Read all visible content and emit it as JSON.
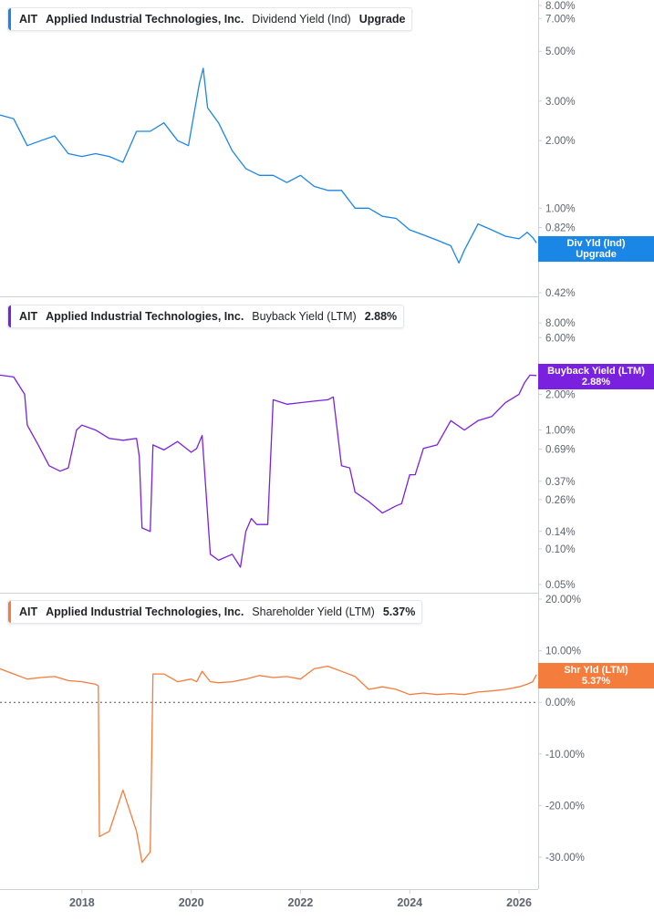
{
  "colors": {
    "div": "#1a86e6",
    "buyback": "#7a21e0",
    "shareholder": "#f47c3c",
    "axis": "#cfd3d8",
    "tick_text": "#5c6570",
    "zero_line": "#555555"
  },
  "x_axis": {
    "ticks": [
      "2018",
      "2020",
      "2022",
      "2024",
      "2026"
    ]
  },
  "chart_data": [
    {
      "type": "line",
      "scale": "log",
      "legend": {
        "ticker": "AIT",
        "company": "Applied Industrial Technologies, Inc.",
        "metric": "Dividend Yield (Ind)",
        "value": "Upgrade"
      },
      "y_ticks": [
        "8.00%",
        "7.00%",
        "5.00%",
        "3.00%",
        "2.00%",
        "1.00%",
        "0.82%",
        "0.42%"
      ],
      "y_tick_values": [
        8,
        7,
        5,
        3,
        2,
        1,
        0.82,
        0.42
      ],
      "end_label": {
        "line1": "Div Yld (Ind)",
        "line2": "Upgrade"
      },
      "series": [
        {
          "name": "Dividend Yield (Ind)",
          "x": [
            2016.5,
            2016.75,
            2017.0,
            2017.25,
            2017.5,
            2017.75,
            2018.0,
            2018.25,
            2018.5,
            2018.75,
            2019.0,
            2019.25,
            2019.5,
            2019.75,
            2019.95,
            2020.15,
            2020.22,
            2020.3,
            2020.5,
            2020.75,
            2021.0,
            2021.25,
            2021.5,
            2021.75,
            2022.0,
            2022.25,
            2022.5,
            2022.75,
            2023.0,
            2023.25,
            2023.5,
            2023.75,
            2024.0,
            2024.25,
            2024.5,
            2024.75,
            2024.9,
            2025.0,
            2025.25,
            2025.5,
            2025.75,
            2026.0,
            2026.15,
            2026.25,
            2026.32
          ],
          "y": [
            2.6,
            2.5,
            1.9,
            2.0,
            2.1,
            1.75,
            1.7,
            1.75,
            1.7,
            1.6,
            2.2,
            2.2,
            2.4,
            2.0,
            1.9,
            3.6,
            4.2,
            2.8,
            2.4,
            1.8,
            1.5,
            1.4,
            1.4,
            1.3,
            1.4,
            1.25,
            1.2,
            1.2,
            1.0,
            1.0,
            0.92,
            0.9,
            0.8,
            0.76,
            0.72,
            0.68,
            0.57,
            0.65,
            0.85,
            0.8,
            0.75,
            0.73,
            0.78,
            0.74,
            0.7
          ]
        }
      ]
    },
    {
      "type": "line",
      "scale": "log",
      "legend": {
        "ticker": "AIT",
        "company": "Applied Industrial Technologies, Inc.",
        "metric": "Buyback Yield (LTM)",
        "value": "2.88%"
      },
      "y_ticks": [
        "8.00%",
        "6.00%",
        "2.00%",
        "1.00%",
        "0.69%",
        "0.37%",
        "0.26%",
        "0.14%",
        "0.10%",
        "0.05%"
      ],
      "y_tick_values": [
        8,
        6,
        2,
        1,
        0.69,
        0.37,
        0.26,
        0.14,
        0.1,
        0.05
      ],
      "end_label": {
        "line1": "Buyback Yield (LTM)",
        "line2": "2.88%"
      },
      "series": [
        {
          "name": "Buyback Yield (LTM)",
          "x": [
            2016.5,
            2016.75,
            2016.95,
            2017.0,
            2017.2,
            2017.4,
            2017.6,
            2017.75,
            2017.9,
            2018.0,
            2018.25,
            2018.5,
            2018.75,
            2019.0,
            2019.05,
            2019.1,
            2019.25,
            2019.3,
            2019.5,
            2019.75,
            2020.0,
            2020.1,
            2020.2,
            2020.35,
            2020.5,
            2020.75,
            2020.9,
            2021.0,
            2021.1,
            2021.2,
            2021.4,
            2021.5,
            2021.75,
            2022.0,
            2022.25,
            2022.5,
            2022.6,
            2022.75,
            2022.9,
            2023.0,
            2023.25,
            2023.5,
            2023.75,
            2023.85,
            2024.0,
            2024.1,
            2024.25,
            2024.5,
            2024.75,
            2025.0,
            2025.25,
            2025.5,
            2025.75,
            2026.0,
            2026.1,
            2026.2,
            2026.32
          ],
          "y": [
            2.9,
            2.8,
            2.0,
            1.1,
            0.75,
            0.5,
            0.45,
            0.48,
            1.0,
            1.1,
            1.0,
            0.85,
            0.82,
            0.85,
            0.6,
            0.15,
            0.14,
            0.75,
            0.68,
            0.8,
            0.65,
            0.7,
            0.9,
            0.09,
            0.08,
            0.09,
            0.07,
            0.14,
            0.18,
            0.16,
            0.16,
            1.8,
            1.65,
            1.7,
            1.75,
            1.8,
            1.9,
            0.5,
            0.48,
            0.3,
            0.25,
            0.2,
            0.23,
            0.24,
            0.42,
            0.42,
            0.7,
            0.75,
            1.2,
            1.0,
            1.2,
            1.3,
            1.7,
            2.0,
            2.5,
            2.9,
            2.88
          ]
        }
      ]
    },
    {
      "type": "line",
      "scale": "linear",
      "legend": {
        "ticker": "AIT",
        "company": "Applied Industrial Technologies, Inc.",
        "metric": "Shareholder Yield (LTM)",
        "value": "5.37%"
      },
      "y_ticks": [
        "20.00%",
        "10.00%",
        "0.00%",
        "-10.00%",
        "-20.00%",
        "-30.00%"
      ],
      "y_tick_values": [
        20,
        10,
        0,
        -10,
        -20,
        -30
      ],
      "end_label": {
        "line1": "Shr Yld (LTM)",
        "line2": "5.37%"
      },
      "series": [
        {
          "name": "Shareholder Yield (LTM)",
          "x": [
            2016.5,
            2016.75,
            2017.0,
            2017.25,
            2017.5,
            2017.75,
            2018.0,
            2018.25,
            2018.3,
            2018.32,
            2018.5,
            2018.75,
            2019.0,
            2019.1,
            2019.25,
            2019.3,
            2019.5,
            2019.75,
            2020.0,
            2020.1,
            2020.2,
            2020.35,
            2020.5,
            2020.75,
            2021.0,
            2021.25,
            2021.5,
            2021.75,
            2022.0,
            2022.25,
            2022.5,
            2022.75,
            2023.0,
            2023.25,
            2023.5,
            2023.75,
            2024.0,
            2024.25,
            2024.5,
            2024.75,
            2025.0,
            2025.25,
            2025.5,
            2025.75,
            2026.0,
            2026.15,
            2026.25,
            2026.32
          ],
          "y": [
            6.5,
            5.5,
            4.5,
            4.8,
            5.0,
            4.2,
            4.0,
            3.5,
            3.2,
            -26.0,
            -25.0,
            -17.0,
            -25.0,
            -31.0,
            -29.0,
            5.5,
            5.5,
            4.0,
            4.5,
            4.0,
            6.0,
            4.0,
            3.8,
            4.0,
            4.5,
            5.2,
            4.8,
            5.0,
            4.5,
            6.5,
            7.0,
            6.0,
            5.0,
            2.5,
            3.0,
            2.5,
            1.5,
            1.8,
            1.5,
            1.7,
            1.5,
            2.0,
            2.2,
            2.5,
            3.0,
            3.5,
            4.0,
            5.37
          ]
        }
      ]
    }
  ]
}
